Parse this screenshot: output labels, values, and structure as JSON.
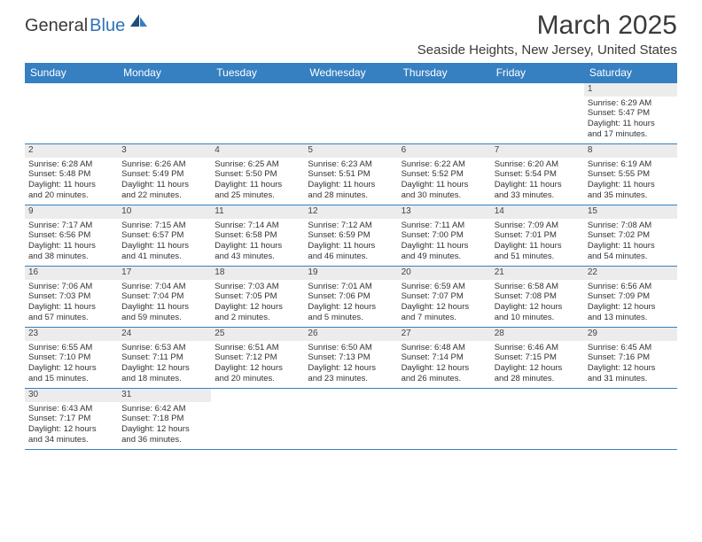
{
  "colors": {
    "header_bg": "#3680c2",
    "header_text": "#ffffff",
    "rule": "#3680c2",
    "daynum_bg": "#ececec",
    "body_text": "#333333",
    "logo_blue": "#2f73b5",
    "logo_dark": "#1e4e79"
  },
  "logo": {
    "part1": "General",
    "part2": "Blue"
  },
  "title": "March 2025",
  "location": "Seaside Heights, New Jersey, United States",
  "day_headers": [
    "Sunday",
    "Monday",
    "Tuesday",
    "Wednesday",
    "Thursday",
    "Friday",
    "Saturday"
  ],
  "weeks": [
    [
      null,
      null,
      null,
      null,
      null,
      null,
      {
        "d": "1",
        "sr": "Sunrise: 6:29 AM",
        "ss": "Sunset: 5:47 PM",
        "dl1": "Daylight: 11 hours",
        "dl2": "and 17 minutes."
      }
    ],
    [
      {
        "d": "2",
        "sr": "Sunrise: 6:28 AM",
        "ss": "Sunset: 5:48 PM",
        "dl1": "Daylight: 11 hours",
        "dl2": "and 20 minutes."
      },
      {
        "d": "3",
        "sr": "Sunrise: 6:26 AM",
        "ss": "Sunset: 5:49 PM",
        "dl1": "Daylight: 11 hours",
        "dl2": "and 22 minutes."
      },
      {
        "d": "4",
        "sr": "Sunrise: 6:25 AM",
        "ss": "Sunset: 5:50 PM",
        "dl1": "Daylight: 11 hours",
        "dl2": "and 25 minutes."
      },
      {
        "d": "5",
        "sr": "Sunrise: 6:23 AM",
        "ss": "Sunset: 5:51 PM",
        "dl1": "Daylight: 11 hours",
        "dl2": "and 28 minutes."
      },
      {
        "d": "6",
        "sr": "Sunrise: 6:22 AM",
        "ss": "Sunset: 5:52 PM",
        "dl1": "Daylight: 11 hours",
        "dl2": "and 30 minutes."
      },
      {
        "d": "7",
        "sr": "Sunrise: 6:20 AM",
        "ss": "Sunset: 5:54 PM",
        "dl1": "Daylight: 11 hours",
        "dl2": "and 33 minutes."
      },
      {
        "d": "8",
        "sr": "Sunrise: 6:19 AM",
        "ss": "Sunset: 5:55 PM",
        "dl1": "Daylight: 11 hours",
        "dl2": "and 35 minutes."
      }
    ],
    [
      {
        "d": "9",
        "sr": "Sunrise: 7:17 AM",
        "ss": "Sunset: 6:56 PM",
        "dl1": "Daylight: 11 hours",
        "dl2": "and 38 minutes."
      },
      {
        "d": "10",
        "sr": "Sunrise: 7:15 AM",
        "ss": "Sunset: 6:57 PM",
        "dl1": "Daylight: 11 hours",
        "dl2": "and 41 minutes."
      },
      {
        "d": "11",
        "sr": "Sunrise: 7:14 AM",
        "ss": "Sunset: 6:58 PM",
        "dl1": "Daylight: 11 hours",
        "dl2": "and 43 minutes."
      },
      {
        "d": "12",
        "sr": "Sunrise: 7:12 AM",
        "ss": "Sunset: 6:59 PM",
        "dl1": "Daylight: 11 hours",
        "dl2": "and 46 minutes."
      },
      {
        "d": "13",
        "sr": "Sunrise: 7:11 AM",
        "ss": "Sunset: 7:00 PM",
        "dl1": "Daylight: 11 hours",
        "dl2": "and 49 minutes."
      },
      {
        "d": "14",
        "sr": "Sunrise: 7:09 AM",
        "ss": "Sunset: 7:01 PM",
        "dl1": "Daylight: 11 hours",
        "dl2": "and 51 minutes."
      },
      {
        "d": "15",
        "sr": "Sunrise: 7:08 AM",
        "ss": "Sunset: 7:02 PM",
        "dl1": "Daylight: 11 hours",
        "dl2": "and 54 minutes."
      }
    ],
    [
      {
        "d": "16",
        "sr": "Sunrise: 7:06 AM",
        "ss": "Sunset: 7:03 PM",
        "dl1": "Daylight: 11 hours",
        "dl2": "and 57 minutes."
      },
      {
        "d": "17",
        "sr": "Sunrise: 7:04 AM",
        "ss": "Sunset: 7:04 PM",
        "dl1": "Daylight: 11 hours",
        "dl2": "and 59 minutes."
      },
      {
        "d": "18",
        "sr": "Sunrise: 7:03 AM",
        "ss": "Sunset: 7:05 PM",
        "dl1": "Daylight: 12 hours",
        "dl2": "and 2 minutes."
      },
      {
        "d": "19",
        "sr": "Sunrise: 7:01 AM",
        "ss": "Sunset: 7:06 PM",
        "dl1": "Daylight: 12 hours",
        "dl2": "and 5 minutes."
      },
      {
        "d": "20",
        "sr": "Sunrise: 6:59 AM",
        "ss": "Sunset: 7:07 PM",
        "dl1": "Daylight: 12 hours",
        "dl2": "and 7 minutes."
      },
      {
        "d": "21",
        "sr": "Sunrise: 6:58 AM",
        "ss": "Sunset: 7:08 PM",
        "dl1": "Daylight: 12 hours",
        "dl2": "and 10 minutes."
      },
      {
        "d": "22",
        "sr": "Sunrise: 6:56 AM",
        "ss": "Sunset: 7:09 PM",
        "dl1": "Daylight: 12 hours",
        "dl2": "and 13 minutes."
      }
    ],
    [
      {
        "d": "23",
        "sr": "Sunrise: 6:55 AM",
        "ss": "Sunset: 7:10 PM",
        "dl1": "Daylight: 12 hours",
        "dl2": "and 15 minutes."
      },
      {
        "d": "24",
        "sr": "Sunrise: 6:53 AM",
        "ss": "Sunset: 7:11 PM",
        "dl1": "Daylight: 12 hours",
        "dl2": "and 18 minutes."
      },
      {
        "d": "25",
        "sr": "Sunrise: 6:51 AM",
        "ss": "Sunset: 7:12 PM",
        "dl1": "Daylight: 12 hours",
        "dl2": "and 20 minutes."
      },
      {
        "d": "26",
        "sr": "Sunrise: 6:50 AM",
        "ss": "Sunset: 7:13 PM",
        "dl1": "Daylight: 12 hours",
        "dl2": "and 23 minutes."
      },
      {
        "d": "27",
        "sr": "Sunrise: 6:48 AM",
        "ss": "Sunset: 7:14 PM",
        "dl1": "Daylight: 12 hours",
        "dl2": "and 26 minutes."
      },
      {
        "d": "28",
        "sr": "Sunrise: 6:46 AM",
        "ss": "Sunset: 7:15 PM",
        "dl1": "Daylight: 12 hours",
        "dl2": "and 28 minutes."
      },
      {
        "d": "29",
        "sr": "Sunrise: 6:45 AM",
        "ss": "Sunset: 7:16 PM",
        "dl1": "Daylight: 12 hours",
        "dl2": "and 31 minutes."
      }
    ],
    [
      {
        "d": "30",
        "sr": "Sunrise: 6:43 AM",
        "ss": "Sunset: 7:17 PM",
        "dl1": "Daylight: 12 hours",
        "dl2": "and 34 minutes."
      },
      {
        "d": "31",
        "sr": "Sunrise: 6:42 AM",
        "ss": "Sunset: 7:18 PM",
        "dl1": "Daylight: 12 hours",
        "dl2": "and 36 minutes."
      },
      null,
      null,
      null,
      null,
      null
    ]
  ]
}
